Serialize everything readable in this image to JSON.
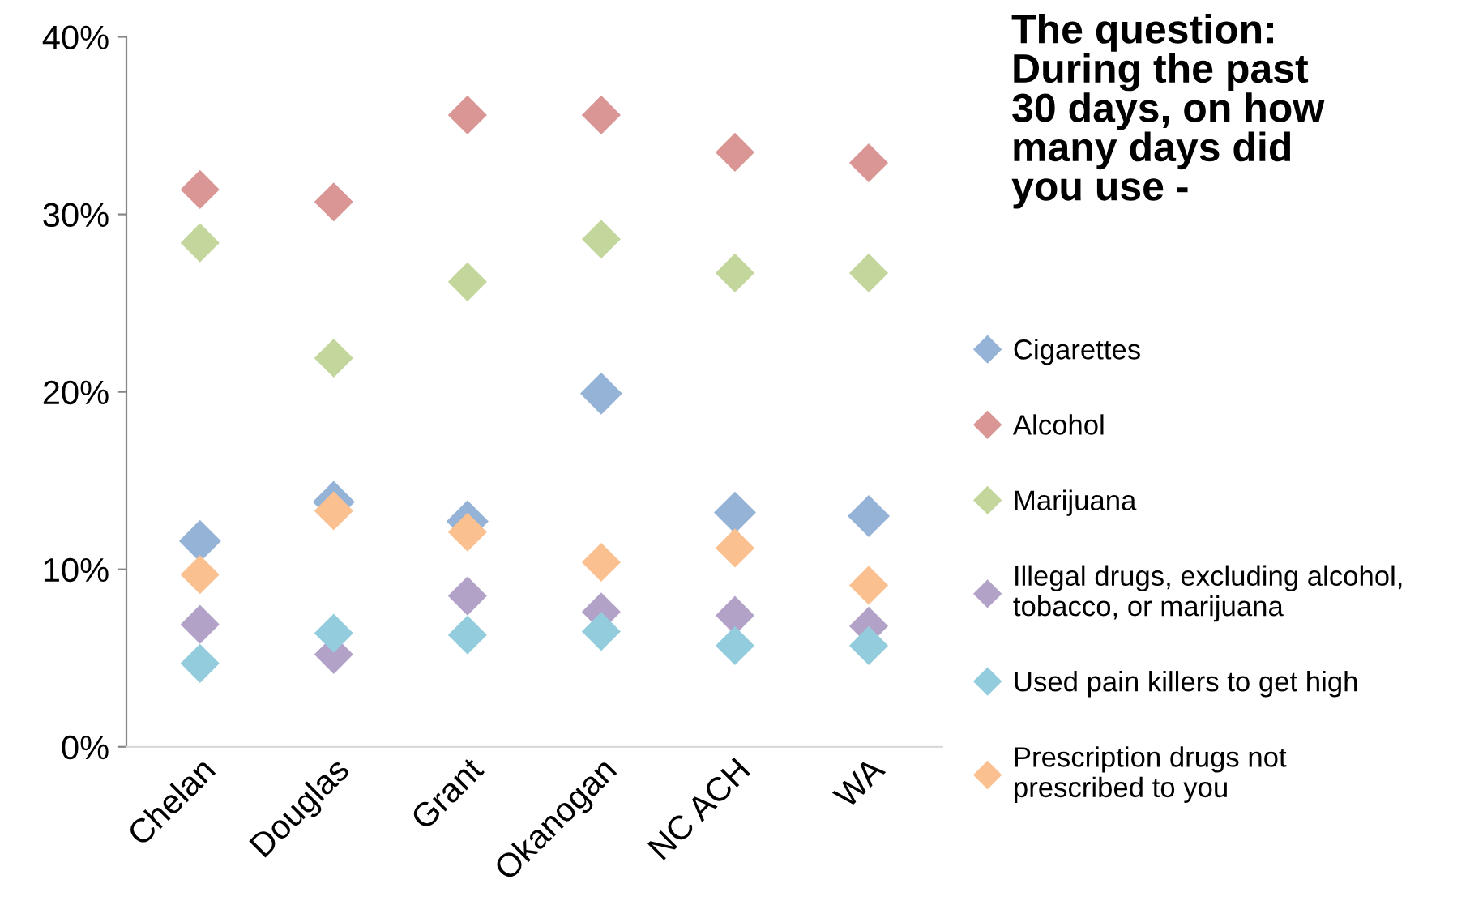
{
  "chart_data": {
    "type": "scatter",
    "title": "The question:\nDuring the past\n30 days, on how\nmany days did\nyou use -",
    "categories": [
      "Chelan",
      "Douglas",
      "Grant",
      "Okanogan",
      "NC ACH",
      "WA"
    ],
    "series": [
      {
        "name": "Cigarettes",
        "color": "#95b3d7",
        "values": [
          11.6,
          13.8,
          12.7,
          19.9,
          13.2,
          13.0
        ]
      },
      {
        "name": "Alcohol",
        "color": "#d99694",
        "values": [
          31.4,
          30.7,
          35.6,
          35.6,
          33.5,
          32.9
        ]
      },
      {
        "name": "Marijuana",
        "color": "#c3d69b",
        "values": [
          28.4,
          21.9,
          26.2,
          28.6,
          26.7,
          26.7
        ]
      },
      {
        "name": "Illegal drugs, excluding alcohol,\ntobacco, or marijuana",
        "color": "#b3a2c7",
        "values": [
          6.9,
          5.2,
          8.5,
          7.6,
          7.4,
          6.8
        ]
      },
      {
        "name": "Used pain killers to get high",
        "color": "#93cddd",
        "values": [
          4.7,
          6.4,
          6.3,
          6.5,
          5.7,
          5.7
        ]
      },
      {
        "name": "Prescription drugs not\nprescribed to you",
        "color": "#fac090",
        "values": [
          9.7,
          13.3,
          12.1,
          10.4,
          11.2,
          9.1
        ]
      }
    ],
    "ylim": [
      0,
      40
    ],
    "yticks": [
      {
        "value": 0,
        "label": "0%"
      },
      {
        "value": 10,
        "label": "10%"
      },
      {
        "value": 20,
        "label": "20%"
      },
      {
        "value": 30,
        "label": "30%"
      },
      {
        "value": 40,
        "label": "40%"
      }
    ],
    "marker": "diamond",
    "legend": "right",
    "grid": false
  }
}
